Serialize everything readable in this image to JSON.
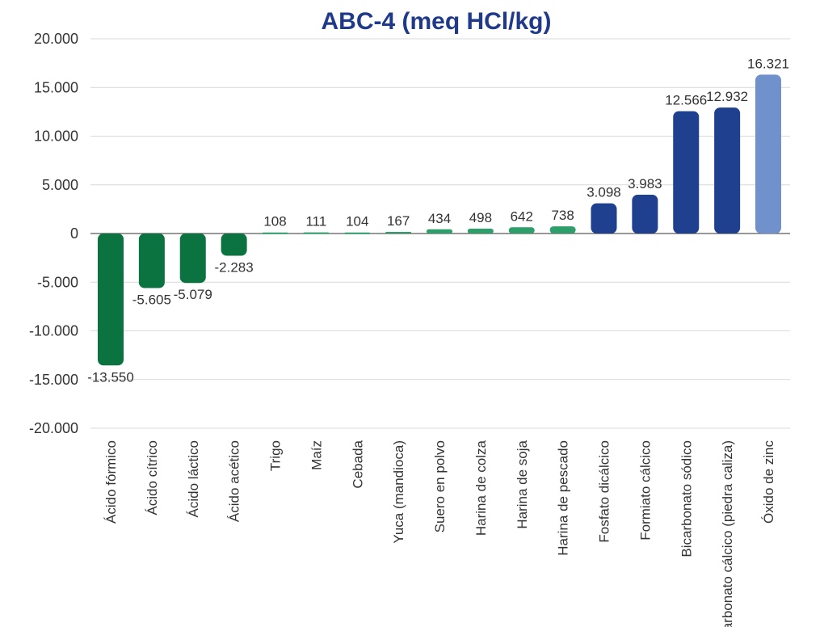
{
  "chart_data": {
    "type": "bar",
    "title": "ABC-4 (meq HCl/kg)",
    "xlabel": "",
    "ylabel": "",
    "ylim": [
      -20000,
      20000
    ],
    "yticks": [
      20000,
      15000,
      10000,
      5000,
      0,
      -5000,
      -10000,
      -15000,
      -20000
    ],
    "ytick_labels": [
      "20.000",
      "15.000",
      "10.000",
      "5.000",
      "0",
      "-5.000",
      "-10.000",
      "-15.000",
      "-20.000"
    ],
    "grid": true,
    "legend": "none",
    "categories": [
      "Ácido fórmico",
      "Ácido cítrico",
      "Ácido láctico",
      "Ácido acético",
      "Trigo",
      "Maíz",
      "Cebada",
      "Yuca (mandioca)",
      "Suero en polvo",
      "Harina de colza",
      "Harina de soja",
      "Harina de pescado",
      "Fosfato dicálcico",
      "Formiato cálcico",
      "Bicarbonato sódico",
      "Carbonato cálcico (piedra caliza)",
      "Óxido de zinc"
    ],
    "values": [
      -13550,
      -5605,
      -5079,
      -2283,
      108,
      111,
      104,
      167,
      434,
      498,
      642,
      738,
      3098,
      3983,
      12566,
      12932,
      16321
    ],
    "data_labels": [
      "-13.550",
      "-5.605",
      "-5.079",
      "-2.283",
      "108",
      "111",
      "104",
      "167",
      "434",
      "498",
      "642",
      "738",
      "3.098",
      "3.983",
      "12.566",
      "12.932",
      "16.321"
    ],
    "colors": [
      "#0a7340",
      "#0a7340",
      "#0a7340",
      "#0a7340",
      "#2e9e6b",
      "#2e9e6b",
      "#2e9e6b",
      "#2e9e6b",
      "#2e9e6b",
      "#2e9e6b",
      "#2e9e6b",
      "#2e9e6b",
      "#1f3f8f",
      "#1f3f8f",
      "#1f3f8f",
      "#1f3f8f",
      "#7091cc"
    ]
  }
}
